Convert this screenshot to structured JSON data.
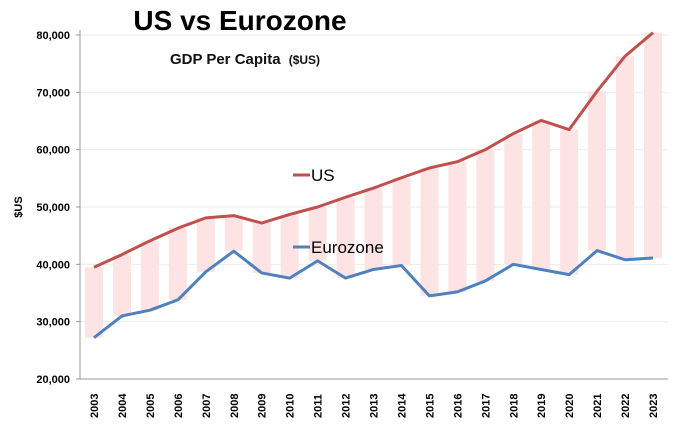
{
  "chart_data": {
    "type": "line",
    "title": "US vs Eurozone",
    "subtitle": "GDP Per Capita",
    "subtitle_unit": "($US)",
    "xlabel": "",
    "ylabel": "$US",
    "ylim": [
      20000,
      80000
    ],
    "yticks": [
      20000,
      30000,
      40000,
      50000,
      60000,
      70000,
      80000
    ],
    "ytick_labels": [
      "20,000",
      "30,000",
      "40,000",
      "50,000",
      "60,000",
      "70,000",
      "80,000"
    ],
    "grid": true,
    "legend": "inline labels",
    "x": [
      "2003",
      "2004",
      "2005",
      "2006",
      "2007",
      "2008",
      "2009",
      "2010",
      "2011",
      "2012",
      "2013",
      "2014",
      "2015",
      "2016",
      "2017",
      "2018",
      "2019",
      "2020",
      "2021",
      "2022",
      "2023"
    ],
    "series": [
      {
        "name": "US",
        "color": "#c0504d",
        "values": [
          39500,
          41700,
          44100,
          46300,
          48100,
          48500,
          47200,
          48700,
          50000,
          51700,
          53300,
          55100,
          56800,
          57900,
          60000,
          62800,
          65100,
          63500,
          70200,
          76300,
          80400
        ]
      },
      {
        "name": "Eurozone",
        "color": "#4f81bd",
        "values": [
          27200,
          31000,
          32000,
          33800,
          38700,
          42300,
          38500,
          37600,
          40600,
          37600,
          39100,
          39800,
          34500,
          35200,
          37100,
          40000,
          39100,
          38200,
          42400,
          40800,
          41100
        ]
      }
    ],
    "gap_fill_color": "#fde3e3"
  }
}
